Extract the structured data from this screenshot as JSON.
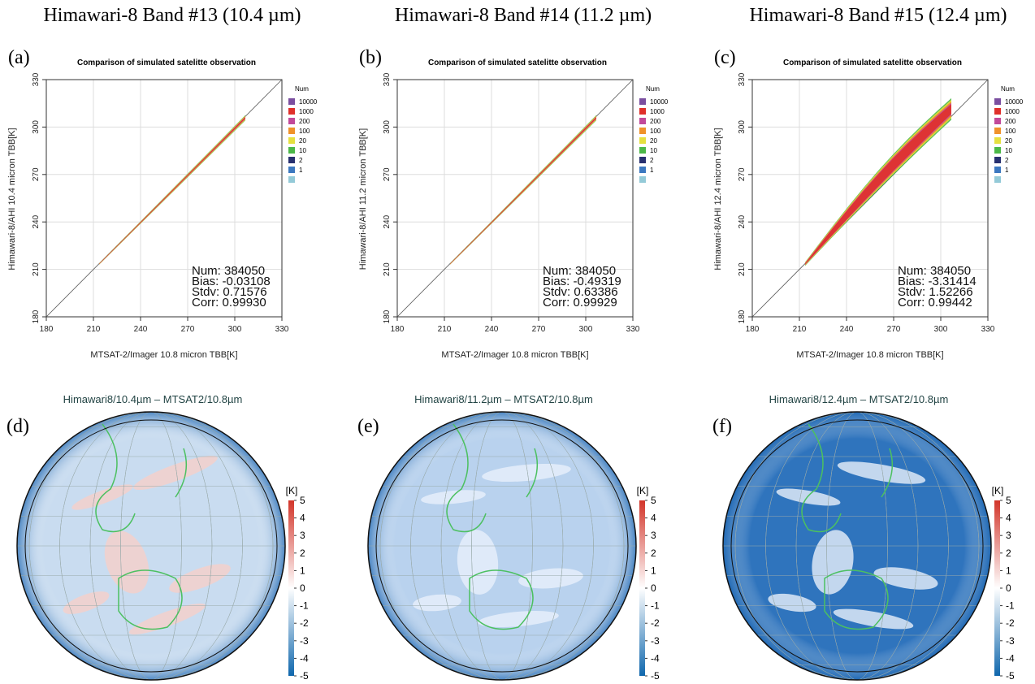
{
  "columns": [
    {
      "heading": "Himawari-8 Band #13 (10.4 µm)",
      "scatter": {
        "panel_label": "(a)",
        "title": "Comparison of simulated satelitte observation",
        "xlabel": "MTSAT-2/Imager 10.8 micron TBB[K]",
        "ylabel": "Himawari-8/AHI 10.4 micron TBB[K]",
        "stats": [
          "Num: 384050",
          "Bias: -0.03108",
          "Stdv: 0.71576",
          "Corr: 0.99930"
        ]
      },
      "map": {
        "panel_label": "(d)",
        "title": "Himawari8/10.4µm – MTSAT2/10.8µm",
        "color": "#c9dcf0"
      }
    },
    {
      "heading": "Himawari-8 Band #14 (11.2 µm)",
      "scatter": {
        "panel_label": "(b)",
        "title": "Comparison of simulated satelitte observation",
        "xlabel": "MTSAT-2/Imager 10.8 micron TBB[K]",
        "ylabel": "Himawari-8/AHI 11.2 micron TBB[K]",
        "stats": [
          "Num: 384050",
          "Bias: -0.49319",
          "Stdv: 0.63386",
          "Corr: 0.99929"
        ]
      },
      "map": {
        "panel_label": "(e)",
        "title": "Himawari8/11.2µm – MTSAT2/10.8µm",
        "color": "#b9d2ee"
      }
    },
    {
      "heading": "Himawari-8 Band #15 (12.4 µm)",
      "scatter": {
        "panel_label": "(c)",
        "title": "Comparison of simulated satelitte observation",
        "xlabel": "MTSAT-2/Imager 10.8 micron TBB[K]",
        "ylabel": "Himawari-8/AHI 12.4 micron TBB[K]",
        "stats": [
          "Num: 384050",
          "Bias: -3.31414",
          "Stdv: 1.52266",
          "Corr: 0.99442"
        ]
      },
      "map": {
        "panel_label": "(f)",
        "title": "Himawari8/12.4µm – MTSAT2/10.8µm",
        "color": "#2f74bd"
      }
    }
  ],
  "scatter_axis": {
    "lim": [
      180,
      330
    ],
    "ticks": [
      180,
      210,
      240,
      270,
      300,
      330
    ]
  },
  "legend": {
    "title": "Num",
    "entries": [
      {
        "label": "10000",
        "color": "#7b4fa0"
      },
      {
        "label": "1000",
        "color": "#e0302a"
      },
      {
        "label": "200",
        "color": "#c2499a"
      },
      {
        "label": "100",
        "color": "#f0922a"
      },
      {
        "label": "20",
        "color": "#e6e040"
      },
      {
        "label": "10",
        "color": "#4cb848"
      },
      {
        "label": "2",
        "color": "#283070"
      },
      {
        "label": "1",
        "color": "#3c78c0"
      },
      {
        "label": null,
        "color": "#94cad8"
      }
    ]
  },
  "colorbar": {
    "unit": "[K]",
    "lim": [
      -5,
      5
    ],
    "ticks": [
      5,
      4,
      3,
      2,
      1,
      0,
      -1,
      -2,
      -3,
      -4,
      -5
    ]
  }
}
